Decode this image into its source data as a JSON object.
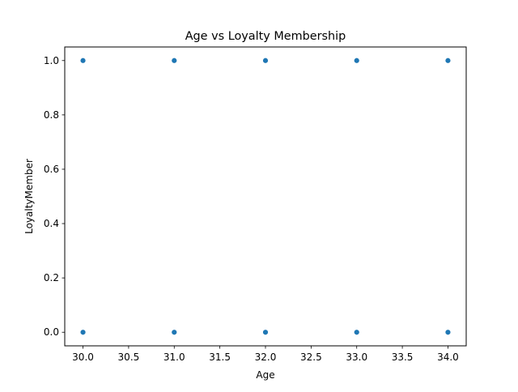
{
  "chart_data": {
    "type": "scatter",
    "title": "Age vs Loyalty Membership",
    "xlabel": "Age",
    "ylabel": "LoyaltyMember",
    "xlim": [
      29.8,
      34.2
    ],
    "ylim": [
      -0.05,
      1.05
    ],
    "xticks": [
      30.0,
      30.5,
      31.0,
      31.5,
      32.0,
      32.5,
      33.0,
      33.5,
      34.0
    ],
    "yticks": [
      0.0,
      0.2,
      0.4,
      0.6,
      0.8,
      1.0
    ],
    "xtick_labels": [
      "30.0",
      "30.5",
      "31.0",
      "31.5",
      "32.0",
      "32.5",
      "33.0",
      "33.5",
      "34.0"
    ],
    "ytick_labels": [
      "0.0",
      "0.2",
      "0.4",
      "0.6",
      "0.8",
      "1.0"
    ],
    "grid": false,
    "marker_color": "#1f77b4",
    "series": [
      {
        "points": [
          {
            "x": 30,
            "y": 0
          },
          {
            "x": 30,
            "y": 1
          },
          {
            "x": 31,
            "y": 0
          },
          {
            "x": 31,
            "y": 1
          },
          {
            "x": 32,
            "y": 0
          },
          {
            "x": 32,
            "y": 1
          },
          {
            "x": 33,
            "y": 0
          },
          {
            "x": 33,
            "y": 1
          },
          {
            "x": 34,
            "y": 0
          },
          {
            "x": 34,
            "y": 1
          }
        ]
      }
    ]
  }
}
